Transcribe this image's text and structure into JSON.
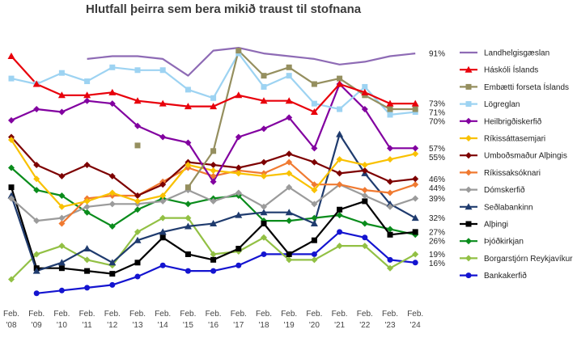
{
  "chart_data": {
    "type": "line",
    "title": "Hlutfall þeirra sem bera mikið traust til stofnana",
    "xlabel": "",
    "ylabel": "",
    "ylim": [
      0,
      100
    ],
    "grid": false,
    "legend_position": "right",
    "x_ticks": [
      {
        "top": "Feb.",
        "bottom": "'08"
      },
      {
        "top": "Feb.",
        "bottom": "'09"
      },
      {
        "top": "Feb.",
        "bottom": "'10"
      },
      {
        "top": "Feb.",
        "bottom": "'11"
      },
      {
        "top": "Feb.",
        "bottom": "'12"
      },
      {
        "top": "Feb.",
        "bottom": "'13"
      },
      {
        "top": "Feb.",
        "bottom": "'14"
      },
      {
        "top": "Feb.",
        "bottom": "'15"
      },
      {
        "top": "Feb.",
        "bottom": "'16"
      },
      {
        "top": "Feb.",
        "bottom": "'17"
      },
      {
        "top": "Feb.",
        "bottom": "'18"
      },
      {
        "top": "Feb.",
        "bottom": "'19"
      },
      {
        "top": "Feb.",
        "bottom": "'20"
      },
      {
        "top": "Feb.",
        "bottom": "'21"
      },
      {
        "top": "Feb.",
        "bottom": "'22"
      },
      {
        "top": "Feb.",
        "bottom": "'23"
      },
      {
        "top": "Feb.",
        "bottom": "'24"
      }
    ],
    "series": [
      {
        "name": "Landhelgisgæslan",
        "color": "#8e6bb5",
        "marker": "line",
        "end_label": "91%",
        "values": [
          null,
          null,
          null,
          89,
          90,
          90,
          89,
          83,
          92,
          93,
          91,
          90,
          89,
          87,
          88,
          90,
          91
        ]
      },
      {
        "name": "Háskóli Íslands",
        "color": "#e8000b",
        "marker": "triangle",
        "end_label": "73%",
        "values": [
          90,
          80,
          76,
          76,
          77,
          74,
          73,
          72,
          72,
          76,
          74,
          74,
          70,
          80,
          77,
          73,
          73
        ]
      },
      {
        "name": "Embætti forseta Íslands",
        "color": "#958f5f",
        "marker": "square",
        "end_label": "71%",
        "values": [
          null,
          null,
          null,
          null,
          null,
          58,
          null,
          43,
          56,
          92,
          83,
          86,
          80,
          82,
          76,
          71,
          71
        ]
      },
      {
        "name": "Lögreglan",
        "color": "#9dd3f2",
        "marker": "square",
        "end_label": "70%",
        "values": [
          82,
          80,
          84,
          81,
          86,
          85,
          85,
          78,
          75,
          91,
          79,
          83,
          73,
          71,
          79,
          69,
          70
        ]
      },
      {
        "name": "Heilbrigðiskerfið",
        "color": "#8200a0",
        "marker": "diamond",
        "end_label": "57%",
        "values": [
          67,
          71,
          70,
          74,
          73,
          65,
          61,
          59,
          45,
          61,
          64,
          68,
          57,
          80,
          71,
          57,
          57
        ]
      },
      {
        "name": "Ríkissáttasemjari",
        "color": "#f9c100",
        "marker": "diamond",
        "end_label": "55%",
        "values": [
          60,
          46,
          36,
          38,
          41,
          38,
          40,
          51,
          49,
          48,
          47,
          48,
          42,
          53,
          51,
          53,
          55
        ]
      },
      {
        "name": "Umboðsmaður Alþingis",
        "color": "#7d0000",
        "marker": "diamond",
        "end_label": "46%",
        "values": [
          61,
          51,
          47,
          51,
          47,
          40,
          44,
          52,
          51,
          50,
          52,
          55,
          52,
          48,
          49,
          45,
          46
        ]
      },
      {
        "name": "Ríkissaksóknari",
        "color": "#f07a31",
        "marker": "diamond",
        "end_label": "44%",
        "values": [
          null,
          null,
          30,
          39,
          40,
          40,
          45,
          50,
          47,
          49,
          48,
          52,
          44,
          44,
          42,
          41,
          44
        ]
      },
      {
        "name": "Dómskerfið",
        "color": "#9b9b9b",
        "marker": "diamond",
        "end_label": "39%",
        "values": [
          39,
          31,
          32,
          36,
          37,
          37,
          38,
          42,
          38,
          41,
          36,
          43,
          37,
          44,
          40,
          36,
          39
        ]
      },
      {
        "name": "Seðlabankinn",
        "color": "#1f3b6e",
        "marker": "triangle",
        "end_label": "32%",
        "values": [
          40,
          13,
          16,
          21,
          16,
          24,
          27,
          29,
          30,
          33,
          34,
          34,
          30,
          62,
          48,
          37,
          32
        ]
      },
      {
        "name": "Alþingi",
        "color": "#000000",
        "marker": "square",
        "end_label": "27%",
        "values": [
          43,
          14,
          14,
          13,
          12,
          16,
          25,
          19,
          17,
          21,
          30,
          19,
          24,
          35,
          38,
          26,
          27
        ]
      },
      {
        "name": "Þjóðkirkjan",
        "color": "#0a8c1c",
        "marker": "diamond",
        "end_label": "26%",
        "values": [
          50,
          42,
          40,
          34,
          29,
          35,
          39,
          37,
          39,
          40,
          31,
          31,
          32,
          33,
          30,
          28,
          26
        ]
      },
      {
        "name": "Borgarstjórn Reykjavíkur",
        "color": "#92c044",
        "marker": "diamond",
        "end_label": "19%",
        "values": [
          10,
          19,
          22,
          17,
          15,
          27,
          32,
          32,
          19,
          20,
          25,
          17,
          17,
          22,
          22,
          14,
          19
        ]
      },
      {
        "name": "Bankakerfið",
        "color": "#1414d0",
        "marker": "circle",
        "end_label": "16%",
        "values": [
          null,
          5,
          6,
          7,
          8,
          11,
          15,
          13,
          13,
          15,
          19,
          19,
          19,
          27,
          25,
          17,
          16
        ]
      }
    ]
  }
}
